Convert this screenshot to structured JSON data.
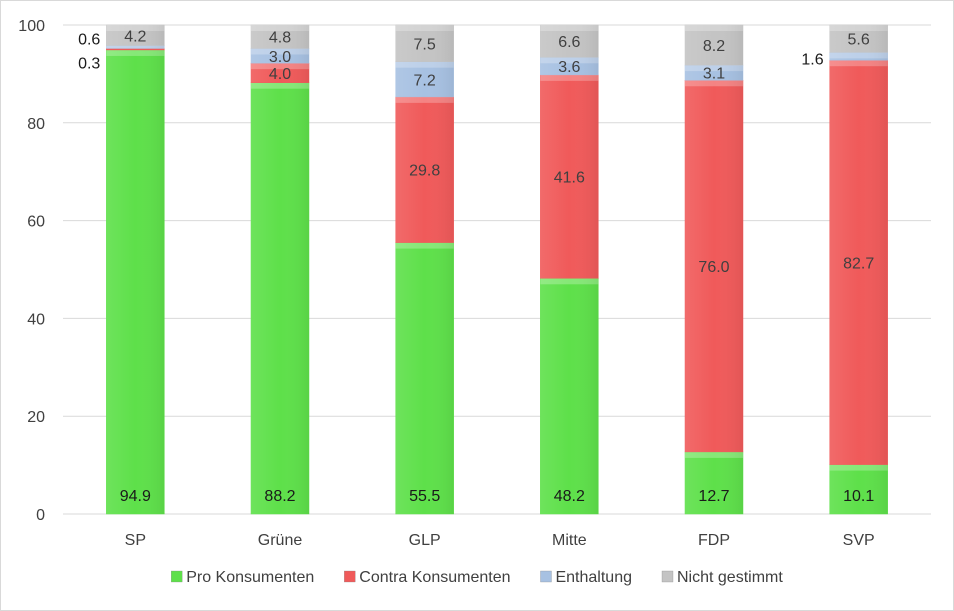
{
  "chart_data": {
    "type": "bar",
    "stacked": true,
    "categories": [
      "SP",
      "Grüne",
      "GLP",
      "Mitte",
      "FDP",
      "SVP"
    ],
    "series": [
      {
        "name": "Pro Konsumenten",
        "color": "#5ee04a",
        "values": [
          94.9,
          88.2,
          55.5,
          48.2,
          12.7,
          10.1
        ]
      },
      {
        "name": "Contra Konsumenten",
        "color": "#f05a5a",
        "values": [
          0.3,
          4.0,
          29.8,
          41.6,
          76.0,
          82.7
        ]
      },
      {
        "name": "Enthaltung",
        "color": "#a7c1e2",
        "values": [
          0.6,
          3.0,
          7.2,
          3.6,
          3.1,
          1.6
        ]
      },
      {
        "name": "Nicht gestimmt",
        "color": "#c4c4c4",
        "values": [
          4.2,
          4.8,
          7.5,
          6.6,
          8.2,
          5.6
        ]
      }
    ],
    "data_labels": [
      [
        "94.9",
        "0.3",
        "0.6",
        "4.2"
      ],
      [
        "88.2",
        "4.0",
        "3.0",
        "4.8"
      ],
      [
        "55.5",
        "29.8",
        "7.2",
        "7.5"
      ],
      [
        "48.2",
        "41.6",
        "3.6",
        "6.6"
      ],
      [
        "12.7",
        "76.0",
        "3.1",
        "8.2"
      ],
      [
        "10.1",
        "82.7",
        "1.6",
        "5.6"
      ]
    ],
    "yticks": [
      "0",
      "20",
      "40",
      "60",
      "80",
      "100"
    ],
    "ylim": [
      0,
      100
    ],
    "grid": true,
    "legend_position": "bottom"
  }
}
